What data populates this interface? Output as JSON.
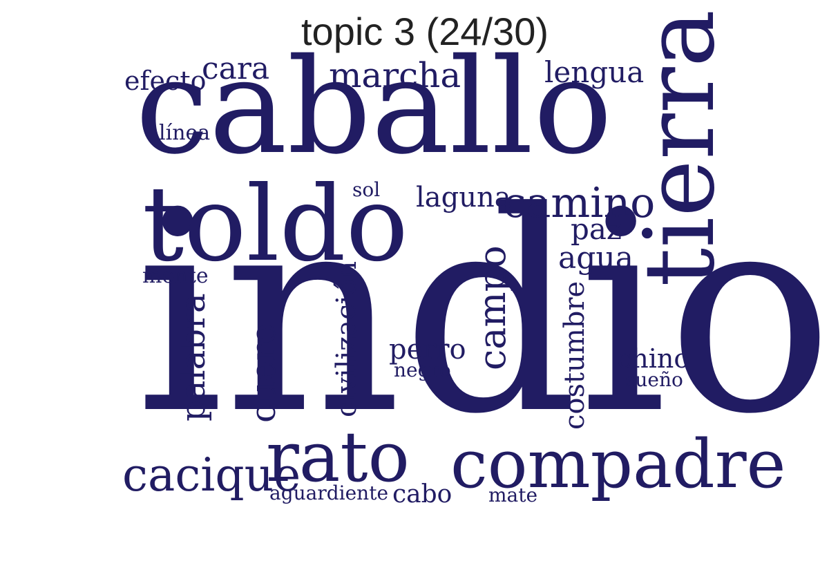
{
  "title": "topic 3 (24/30)",
  "word_color": "#211c63",
  "words": [
    {
      "text": "indio",
      "name": "word-indio"
    },
    {
      "text": "caballo",
      "name": "word-caballo"
    },
    {
      "text": "toldo",
      "name": "word-toldo"
    },
    {
      "text": "tierra",
      "name": "word-tierra"
    },
    {
      "text": "compadre",
      "name": "word-compadre"
    },
    {
      "text": "rato",
      "name": "word-rato"
    },
    {
      "text": "camino",
      "name": "word-camino"
    },
    {
      "text": "cacique",
      "name": "word-cacique"
    },
    {
      "text": "marcha",
      "name": "word-marcha"
    },
    {
      "text": "campo",
      "name": "word-campo"
    },
    {
      "text": "cuero",
      "name": "word-cuero"
    },
    {
      "text": "palabra",
      "name": "word-palabra"
    },
    {
      "text": "civilización",
      "name": "word-civilizacion"
    },
    {
      "text": "costumbre",
      "name": "word-costumbre"
    },
    {
      "text": "lengua",
      "name": "word-lengua"
    },
    {
      "text": "cara",
      "name": "word-cara"
    },
    {
      "text": "laguna",
      "name": "word-laguna"
    },
    {
      "text": "agua",
      "name": "word-agua"
    },
    {
      "text": "paz",
      "name": "word-paz"
    },
    {
      "text": "efecto",
      "name": "word-efecto"
    },
    {
      "text": "perro",
      "name": "word-perro"
    },
    {
      "text": "chino",
      "name": "word-chino"
    },
    {
      "text": "cabo",
      "name": "word-cabo"
    },
    {
      "text": "aguardiente",
      "name": "word-aguardiente"
    },
    {
      "text": "mate",
      "name": "word-mate"
    },
    {
      "text": "línea",
      "name": "word-linea"
    },
    {
      "text": "monte",
      "name": "word-monte"
    },
    {
      "text": "sol",
      "name": "word-sol"
    },
    {
      "text": "negro",
      "name": "word-negro"
    },
    {
      "text": "sueño",
      "name": "word-sueno"
    }
  ]
}
